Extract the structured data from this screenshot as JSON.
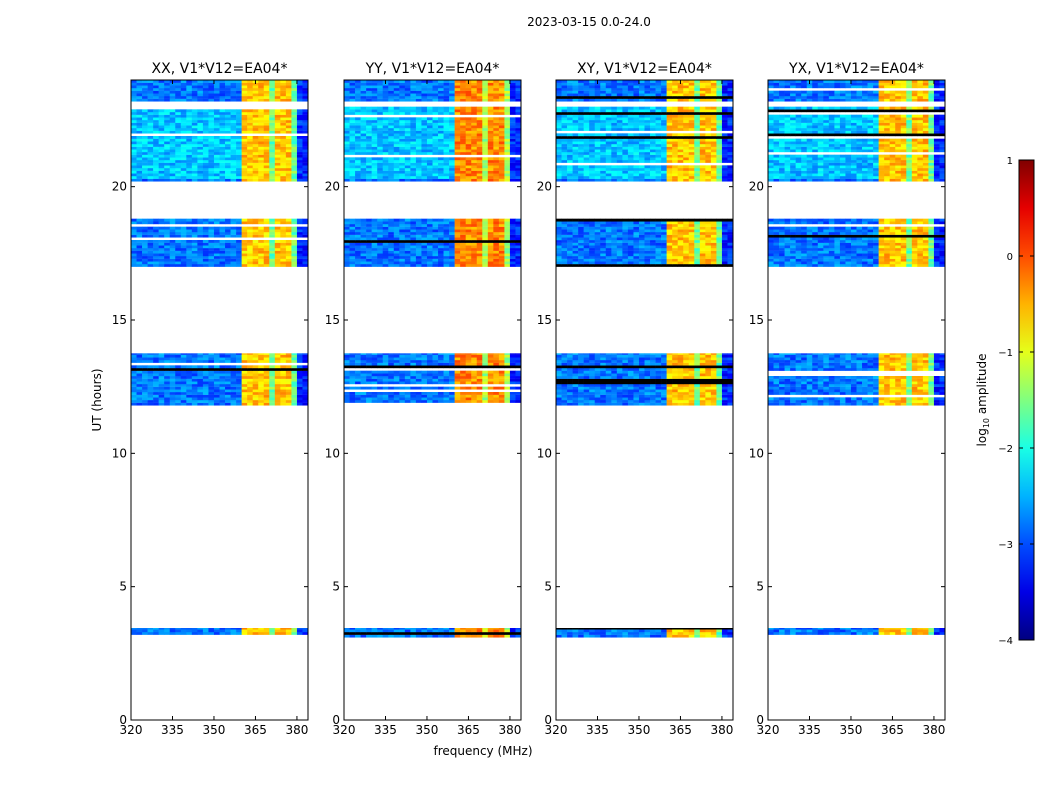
{
  "chart_data": {
    "type": "heatmap",
    "title": "2023-03-15 0.0-24.0",
    "xlabel": "frequency (MHz)",
    "ylabel": "UT (hours)",
    "xlim": [
      320,
      384
    ],
    "ylim": [
      0,
      24
    ],
    "xticks": [
      "320",
      "335",
      "350",
      "365",
      "380"
    ],
    "xtick_values": [
      320,
      335,
      350,
      365,
      380
    ],
    "yticks": [
      "0",
      "5",
      "10",
      "15",
      "20"
    ],
    "ytick_values": [
      0,
      5,
      10,
      15,
      20
    ],
    "panels": [
      {
        "title": "XX, V1*V12=EA04*",
        "band_level": -0.6
      },
      {
        "title": "YY, V1*V12=EA04*",
        "band_level": -0.3
      },
      {
        "title": "XY, V1*V12=EA04*",
        "band_level": -0.6
      },
      {
        "title": "YX, V1*V12=EA04*",
        "band_level": -0.6
      }
    ],
    "time_segments_hours": [
      [
        3.1,
        3.45
      ],
      [
        11.8,
        13.75
      ],
      [
        17.0,
        18.8
      ],
      [
        20.2,
        23.0
      ],
      [
        23.2,
        24.0
      ]
    ],
    "frequency_regions": [
      {
        "range_mhz": [
          320,
          360
        ],
        "log10_amplitude": -2.8
      },
      {
        "range_mhz": [
          360,
          380
        ],
        "log10_amplitude": -0.6
      },
      {
        "range_mhz": [
          380,
          384
        ],
        "log10_amplitude": -3.2
      }
    ],
    "colorbar": {
      "label": "log",
      "label_sub": "10",
      "label_rest": " amplitude",
      "range": [
        -4,
        1
      ],
      "ticks": [
        "1",
        "0",
        "−1",
        "−2",
        "−3",
        "−4"
      ],
      "tick_values": [
        1,
        0,
        -1,
        -2,
        -3,
        -4
      ],
      "colormap": "jet"
    }
  }
}
